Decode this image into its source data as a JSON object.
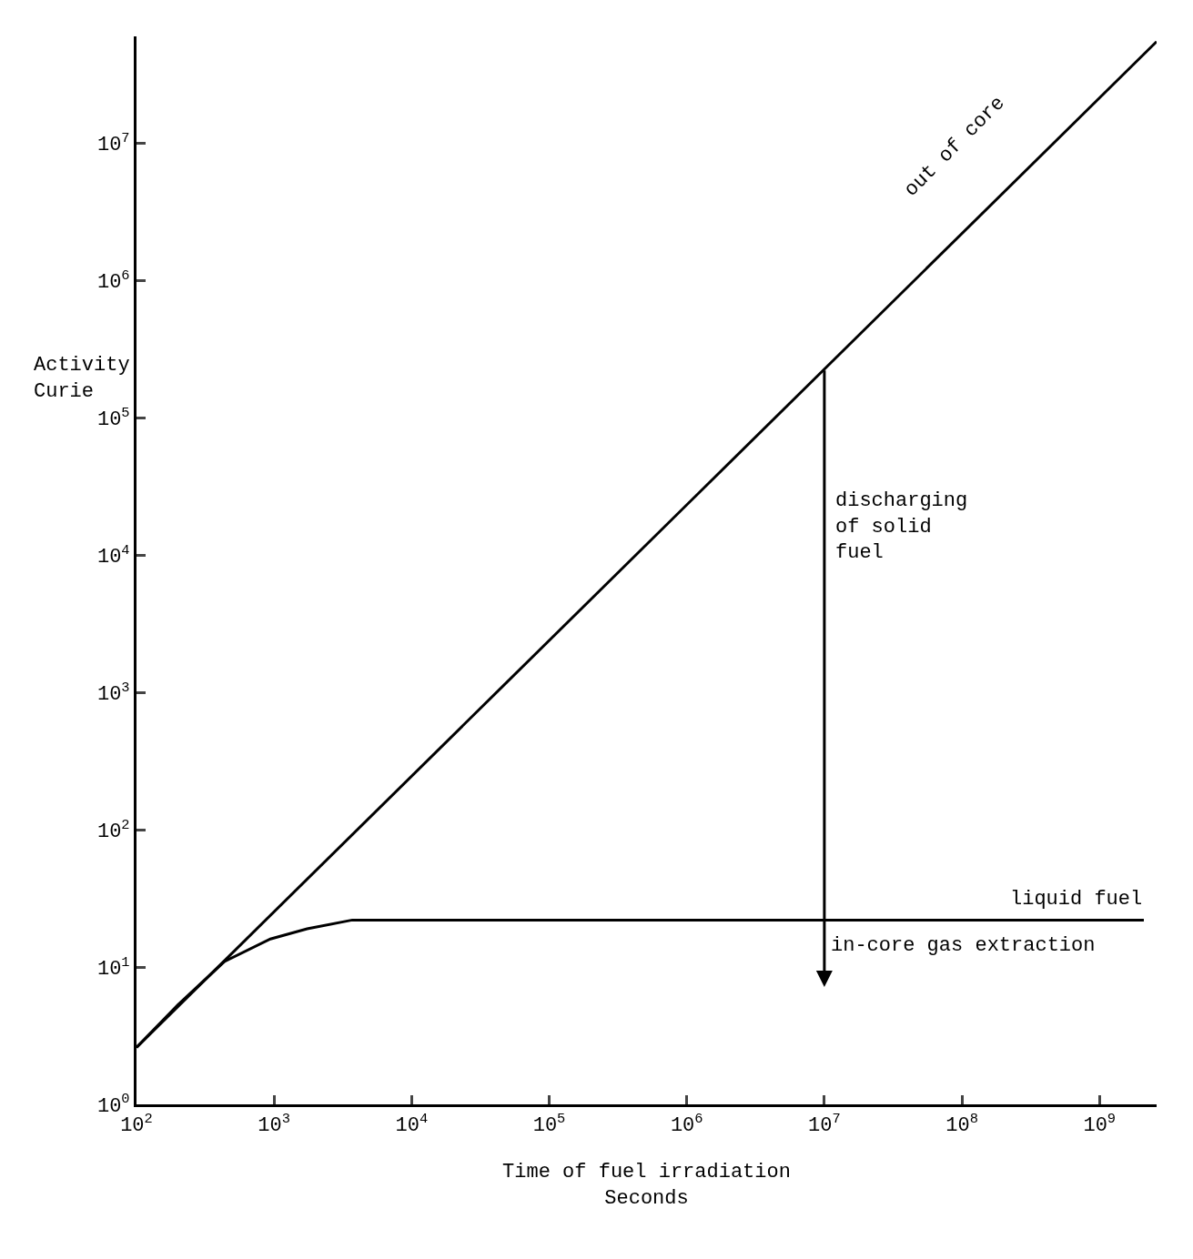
{
  "chart_data": {
    "type": "line",
    "xlabel": "Time of fuel irradiation\nSeconds",
    "ylabel": "Activity\nCurie",
    "log": "xy",
    "xlim": [
      100,
      2600000000
    ],
    "ylim": [
      1,
      60000000
    ],
    "xticks": [
      {
        "value": 100,
        "label": "10$^{2}$"
      },
      {
        "value": 1000,
        "label": "10$^{3}$"
      },
      {
        "value": 10000,
        "label": "10$^{4}$"
      },
      {
        "value": 100000,
        "label": "10$^{5}$"
      },
      {
        "value": 1000000,
        "label": "10$^{6}$"
      },
      {
        "value": 10000000,
        "label": "10$^{7}$"
      },
      {
        "value": 100000000,
        "label": "10$^{8}$"
      },
      {
        "value": 1000000000,
        "label": "10$^{9}$"
      }
    ],
    "yticks": [
      {
        "value": 1,
        "label": "10$^{0}$"
      },
      {
        "value": 10,
        "label": "10$^{1}$"
      },
      {
        "value": 100,
        "label": "10$^{2}$"
      },
      {
        "value": 1000,
        "label": "10$^{3}$"
      },
      {
        "value": 10000,
        "label": "10$^{4}$"
      },
      {
        "value": 100000,
        "label": "10$^{5}$"
      },
      {
        "value": 1000000,
        "label": "10$^{6}$"
      },
      {
        "value": 10000000,
        "label": "10$^{7}$"
      }
    ],
    "series": [
      {
        "color": "#000000",
        "x": [
          100,
          2600000000
        ],
        "values": [
          2.6,
          55000000
        ]
      },
      {
        "color": "#000000",
        "x": [
          100,
          200,
          437,
          940,
          1740,
          3700,
          2100000000
        ],
        "values": [
          2.6,
          5.3,
          11,
          16,
          19,
          22,
          22
        ]
      }
    ],
    "annotations": [
      "out of core",
      "liquid fuel",
      "in-core gas extraction",
      "discharging\nof solid\nfuel"
    ]
  }
}
